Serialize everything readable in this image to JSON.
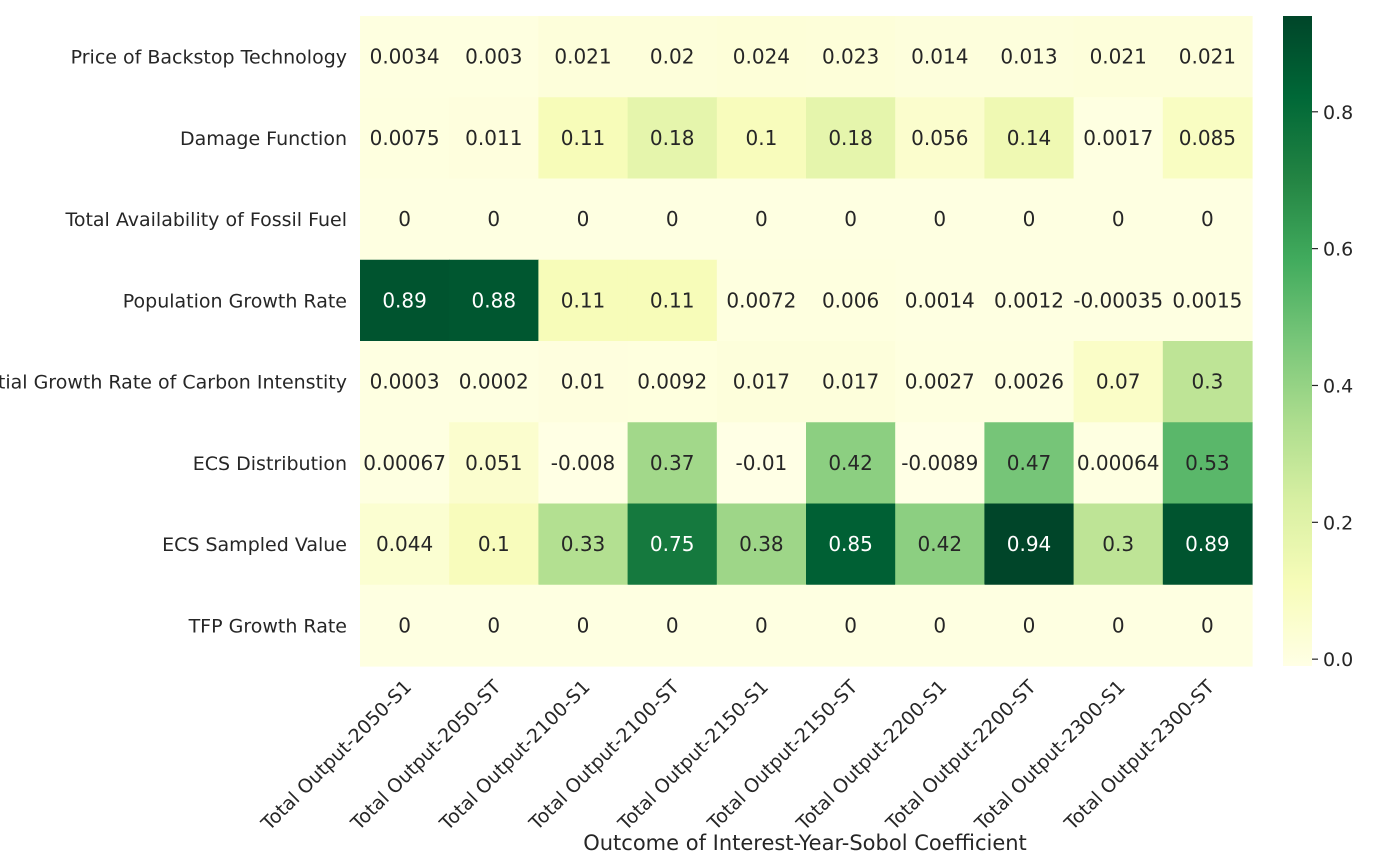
{
  "chart_data": {
    "type": "heatmap",
    "title": "",
    "xlabel": "Outcome of Interest-Year-Sobol Coefficient",
    "ylabel": "",
    "x": [
      "Total Output-2050-S1",
      "Total Output-2050-ST",
      "Total Output-2100-S1",
      "Total Output-2100-ST",
      "Total Output-2150-S1",
      "Total Output-2150-ST",
      "Total Output-2200-S1",
      "Total Output-2200-ST",
      "Total Output-2300-S1",
      "Total Output-2300-ST"
    ],
    "y": [
      "Price of Backstop Technology",
      "Damage Function",
      "Total Availability of Fossil Fuel",
      "Population Growth Rate",
      "Initial Growth Rate of Carbon Intenstity",
      "ECS Distribution",
      "ECS Sampled Value",
      "TFP Growth Rate"
    ],
    "values": [
      [
        0.0034,
        0.003,
        0.021,
        0.02,
        0.024,
        0.023,
        0.014,
        0.013,
        0.021,
        0.021
      ],
      [
        0.0075,
        0.011,
        0.11,
        0.18,
        0.1,
        0.18,
        0.056,
        0.14,
        0.0017,
        0.085
      ],
      [
        0,
        0,
        0,
        0,
        0,
        0,
        0,
        0,
        0,
        0
      ],
      [
        0.89,
        0.88,
        0.11,
        0.11,
        0.0072,
        0.006,
        0.0014,
        0.0012,
        -0.00035,
        0.0015
      ],
      [
        0.0003,
        0.0002,
        0.01,
        0.0092,
        0.017,
        0.017,
        0.0027,
        0.0026,
        0.07,
        0.3
      ],
      [
        0.00067,
        0.051,
        -0.008,
        0.37,
        -0.01,
        0.42,
        -0.0089,
        0.47,
        0.00064,
        0.53
      ],
      [
        0.044,
        0.1,
        0.33,
        0.75,
        0.38,
        0.85,
        0.42,
        0.94,
        0.3,
        0.89
      ],
      [
        0,
        0,
        0,
        0,
        0,
        0,
        0,
        0,
        0,
        0
      ]
    ],
    "labels": [
      [
        "0.0034",
        "0.003",
        "0.021",
        "0.02",
        "0.024",
        "0.023",
        "0.014",
        "0.013",
        "0.021",
        "0.021"
      ],
      [
        "0.0075",
        "0.011",
        "0.11",
        "0.18",
        "0.1",
        "0.18",
        "0.056",
        "0.14",
        "0.0017",
        "0.085"
      ],
      [
        "0",
        "0",
        "0",
        "0",
        "0",
        "0",
        "0",
        "0",
        "0",
        "0"
      ],
      [
        "0.89",
        "0.88",
        "0.11",
        "0.11",
        "0.0072",
        "0.006",
        "0.0014",
        "0.0012",
        "-0.00035",
        "0.0015"
      ],
      [
        "0.0003",
        "0.0002",
        "0.01",
        "0.0092",
        "0.017",
        "0.017",
        "0.0027",
        "0.0026",
        "0.07",
        "0.3"
      ],
      [
        "0.00067",
        "0.051",
        "-0.008",
        "0.37",
        "-0.01",
        "0.42",
        "-0.0089",
        "0.47",
        "0.00064",
        "0.53"
      ],
      [
        "0.044",
        "0.1",
        "0.33",
        "0.75",
        "0.38",
        "0.85",
        "0.42",
        "0.94",
        "0.3",
        "0.89"
      ],
      [
        "0",
        "0",
        "0",
        "0",
        "0",
        "0",
        "0",
        "0",
        "0",
        "0"
      ]
    ],
    "colorbar": {
      "colormap": "YlGn",
      "range": [
        -0.01,
        0.94
      ],
      "ticks": [
        0.0,
        0.2,
        0.4,
        0.6,
        0.8
      ],
      "tick_labels": [
        "0.0",
        "0.2",
        "0.4",
        "0.6",
        "0.8"
      ],
      "stops": [
        "#ffffe5",
        "#f7fcb9",
        "#d9f0a3",
        "#addd8e",
        "#78c679",
        "#41ab5d",
        "#238443",
        "#006837",
        "#004529"
      ]
    },
    "grid": false,
    "legend": "colorbar-right"
  }
}
